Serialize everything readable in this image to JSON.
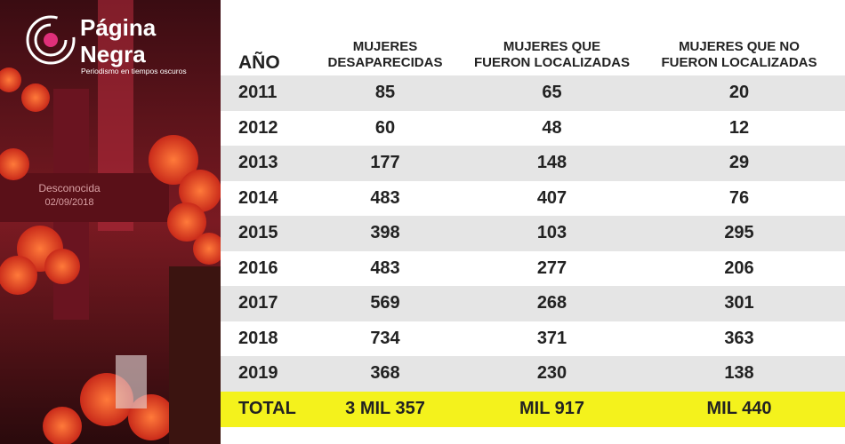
{
  "brand": {
    "name_line1": "Página",
    "name_line2": "Negra",
    "tagline": "Periodismo en tiempos oscuros"
  },
  "photo": {
    "cross_text": "Desconocida",
    "cross_date": "02/09/2018"
  },
  "table": {
    "header": [
      [
        "AÑO"
      ],
      [
        "MUJERES",
        "DESAPARECIDAS"
      ],
      [
        "MUJERES QUE",
        "FUERON LOCALIZADAS"
      ],
      [
        "MUJERES QUE NO",
        "FUERON LOCALIZADAS"
      ]
    ],
    "rows": [
      [
        2011,
        85,
        65,
        20
      ],
      [
        2012,
        60,
        48,
        12
      ],
      [
        2013,
        177,
        148,
        29
      ],
      [
        2014,
        483,
        407,
        76
      ],
      [
        2015,
        398,
        103,
        295
      ],
      [
        2016,
        483,
        277,
        206
      ],
      [
        2017,
        569,
        268,
        301
      ],
      [
        2018,
        734,
        371,
        363
      ],
      [
        2019,
        368,
        230,
        138
      ]
    ],
    "total": [
      "TOTAL",
      "3 MIL 357",
      "MIL 917",
      "MIL 440"
    ]
  }
}
